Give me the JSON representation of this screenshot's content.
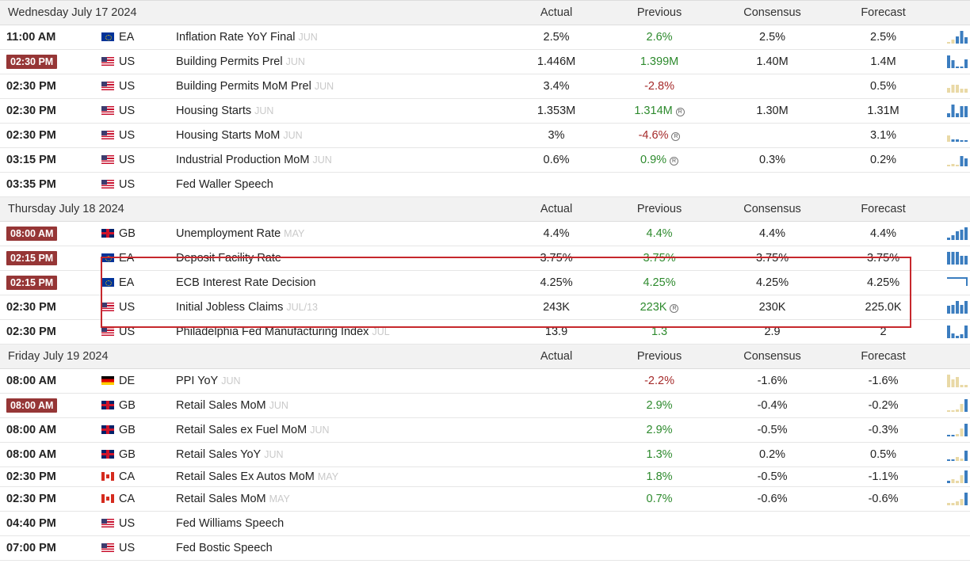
{
  "columns": {
    "actual": "Actual",
    "previous": "Previous",
    "consensus": "Consensus",
    "forecast": "Forecast"
  },
  "colors": {
    "badge": "#963636",
    "green": "#2d8a2d",
    "red": "#a52a2a",
    "highlight": "#c6282d",
    "spark_blue": "#3b7dbf",
    "spark_tan": "#e9d9a6"
  },
  "days": [
    {
      "label": "Wednesday July 17 2024",
      "events": [
        {
          "time": "11:00 AM",
          "badge": false,
          "flag": "eu",
          "country": "EA",
          "event": "Inflation Rate YoY Final",
          "period": "JUN",
          "actual": "2.5%",
          "previous": "2.6%",
          "prev_color": "green",
          "revised": false,
          "consensus": "2.5%",
          "forecast": "2.5%",
          "spark": [
            0.15,
            0.3,
            0.55,
            1,
            0.5
          ],
          "spark_colors": [
            "tan",
            "tan",
            "blue",
            "blue",
            "blue"
          ]
        },
        {
          "time": "02:30 PM",
          "badge": true,
          "flag": "us",
          "country": "US",
          "event": "Building Permits Prel",
          "period": "JUN",
          "actual": "1.446M",
          "previous": "1.399M",
          "prev_color": "green",
          "revised": false,
          "consensus": "1.40M",
          "forecast": "1.4M",
          "spark": [
            1,
            0.6,
            0.15,
            0.15,
            0.7
          ],
          "spark_colors": [
            "blue",
            "blue",
            "blue",
            "blue",
            "blue"
          ]
        },
        {
          "time": "02:30 PM",
          "badge": false,
          "flag": "us",
          "country": "US",
          "event": "Building Permits MoM Prel",
          "period": "JUN",
          "actual": "3.4%",
          "previous": "-2.8%",
          "prev_color": "red",
          "revised": false,
          "consensus": "",
          "forecast": "0.5%",
          "spark": [
            0.4,
            0.6,
            0.6,
            0.3,
            0.3
          ],
          "spark_colors": [
            "tan",
            "tan",
            "tan",
            "tan",
            "tan"
          ]
        },
        {
          "time": "02:30 PM",
          "badge": false,
          "flag": "us",
          "country": "US",
          "event": "Housing Starts",
          "period": "JUN",
          "actual": "1.353M",
          "previous": "1.314M",
          "prev_color": "green",
          "revised": true,
          "consensus": "1.30M",
          "forecast": "1.31M",
          "spark": [
            0.3,
            1,
            0.3,
            0.9,
            0.9
          ],
          "spark_colors": [
            "blue",
            "blue",
            "blue",
            "blue",
            "blue"
          ]
        },
        {
          "time": "02:30 PM",
          "badge": false,
          "flag": "us",
          "country": "US",
          "event": "Housing Starts MoM",
          "period": "JUN",
          "actual": "3%",
          "previous": "-4.6%",
          "prev_color": "red",
          "revised": true,
          "consensus": "",
          "forecast": "3.1%",
          "spark": [
            0.5,
            0.2,
            0.2,
            0.1,
            0.1
          ],
          "spark_colors": [
            "tan",
            "blue",
            "blue",
            "blue",
            "blue"
          ]
        },
        {
          "time": "03:15 PM",
          "badge": false,
          "flag": "us",
          "country": "US",
          "event": "Industrial Production MoM",
          "period": "JUN",
          "actual": "0.6%",
          "previous": "0.9%",
          "prev_color": "green",
          "revised": true,
          "consensus": "0.3%",
          "forecast": "0.2%",
          "spark": [
            0,
            0.2,
            0,
            0.8,
            0.6
          ],
          "spark_colors": [
            "tan",
            "tan",
            "tan",
            "blue",
            "blue"
          ]
        },
        {
          "time": "03:35 PM",
          "badge": false,
          "flag": "us",
          "country": "US",
          "event": "Fed Waller Speech",
          "period": "",
          "actual": "",
          "previous": "",
          "prev_color": "green",
          "revised": false,
          "consensus": "",
          "forecast": "",
          "spark": [],
          "spark_colors": []
        }
      ]
    },
    {
      "label": "Thursday July 18 2024",
      "events": [
        {
          "time": "08:00 AM",
          "badge": true,
          "flag": "gb",
          "country": "GB",
          "event": "Unemployment Rate",
          "period": "MAY",
          "actual": "4.4%",
          "previous": "4.4%",
          "prev_color": "green",
          "revised": false,
          "consensus": "4.4%",
          "forecast": "4.4%",
          "spark": [
            0.2,
            0.4,
            0.7,
            0.8,
            1
          ],
          "spark_colors": [
            "blue",
            "blue",
            "blue",
            "blue",
            "blue"
          ]
        },
        {
          "time": "02:15 PM",
          "badge": true,
          "flag": "eu",
          "country": "EA",
          "event": "Deposit Facility Rate",
          "period": "",
          "actual": "3.75%",
          "previous": "3.75%",
          "prev_color": "green",
          "revised": false,
          "consensus": "3.75%",
          "forecast": "3.75%",
          "spark": [
            1,
            1,
            1,
            0.7,
            0.7
          ],
          "spark_colors": [
            "blue",
            "blue",
            "blue",
            "blue",
            "blue"
          ]
        },
        {
          "time": "02:15 PM",
          "badge": true,
          "flag": "eu",
          "country": "EA",
          "event": "ECB Interest Rate Decision",
          "period": "",
          "actual": "4.25%",
          "previous": "4.25%",
          "prev_color": "green",
          "revised": false,
          "consensus": "4.25%",
          "forecast": "4.25%",
          "spark": [],
          "spark_colors": [],
          "spark_line": true
        },
        {
          "time": "02:30 PM",
          "badge": false,
          "flag": "us",
          "country": "US",
          "event": "Initial Jobless Claims",
          "period": "JUL/13",
          "actual": "243K",
          "previous": "223K",
          "prev_color": "green",
          "revised": true,
          "consensus": "230K",
          "forecast": "225.0K",
          "spark": [
            0.6,
            0.7,
            1,
            0.7,
            1
          ],
          "spark_colors": [
            "blue",
            "blue",
            "blue",
            "blue",
            "blue"
          ]
        },
        {
          "time": "02:30 PM",
          "badge": false,
          "flag": "us",
          "country": "US",
          "event": "Philadelphia Fed Manufacturing Index",
          "period": "JUL",
          "actual": "13.9",
          "previous": "1.3",
          "prev_color": "green",
          "revised": false,
          "consensus": "2.9",
          "forecast": "2",
          "spark": [
            1,
            0.4,
            0.2,
            0.3,
            1
          ],
          "spark_colors": [
            "blue",
            "blue",
            "blue",
            "blue",
            "blue"
          ]
        }
      ]
    },
    {
      "label": "Friday July 19 2024",
      "events": [
        {
          "time": "08:00 AM",
          "badge": false,
          "flag": "de",
          "country": "DE",
          "event": "PPI YoY",
          "period": "JUN",
          "actual": "",
          "previous": "-2.2%",
          "prev_color": "red",
          "revised": false,
          "consensus": "-1.6%",
          "forecast": "-1.6%",
          "spark": [
            1,
            0.6,
            0.8,
            0.2,
            0.2
          ],
          "spark_colors": [
            "tan",
            "tan",
            "tan",
            "tan",
            "tan"
          ]
        },
        {
          "time": "08:00 AM",
          "badge": true,
          "flag": "gb",
          "country": "GB",
          "event": "Retail Sales MoM",
          "period": "JUN",
          "actual": "",
          "previous": "2.9%",
          "prev_color": "green",
          "revised": false,
          "consensus": "-0.4%",
          "forecast": "-0.2%",
          "spark": [
            0.1,
            0.1,
            0.2,
            0.6,
            1
          ],
          "spark_colors": [
            "tan",
            "tan",
            "tan",
            "tan",
            "blue"
          ]
        },
        {
          "time": "08:00 AM",
          "badge": false,
          "flag": "gb",
          "country": "GB",
          "event": "Retail Sales ex Fuel MoM",
          "period": "JUN",
          "actual": "",
          "previous": "2.9%",
          "prev_color": "green",
          "revised": false,
          "consensus": "-0.5%",
          "forecast": "-0.3%",
          "spark": [
            0.1,
            0.1,
            0.2,
            0.6,
            1
          ],
          "spark_colors": [
            "blue",
            "blue",
            "tan",
            "tan",
            "blue"
          ]
        },
        {
          "time": "08:00 AM",
          "badge": false,
          "flag": "gb",
          "country": "GB",
          "event": "Retail Sales YoY",
          "period": "JUN",
          "actual": "",
          "previous": "1.3%",
          "prev_color": "green",
          "revised": false,
          "consensus": "0.2%",
          "forecast": "0.5%",
          "spark": [
            0.1,
            0.1,
            0.3,
            0.2,
            0.8
          ],
          "spark_colors": [
            "blue",
            "blue",
            "tan",
            "tan",
            "blue"
          ]
        },
        {
          "time": "02:30 PM",
          "badge": false,
          "flag": "ca",
          "country": "CA",
          "event": "Retail Sales Ex Autos MoM",
          "period": "MAY",
          "actual": "",
          "previous": "1.8%",
          "prev_color": "green",
          "revised": false,
          "consensus": "-0.5%",
          "forecast": "-1.1%",
          "spark": [
            0.2,
            0.3,
            0.2,
            0.6,
            1
          ],
          "spark_colors": [
            "blue",
            "tan",
            "tan",
            "tan",
            "blue"
          ],
          "tight": true
        },
        {
          "time": "02:30 PM",
          "badge": false,
          "flag": "ca",
          "country": "CA",
          "event": "Retail Sales MoM",
          "period": "MAY",
          "actual": "",
          "previous": "0.7%",
          "prev_color": "green",
          "revised": false,
          "consensus": "-0.6%",
          "forecast": "-0.6%",
          "spark": [
            0.2,
            0.2,
            0.3,
            0.5,
            1
          ],
          "spark_colors": [
            "tan",
            "tan",
            "tan",
            "tan",
            "blue"
          ]
        },
        {
          "time": "04:40 PM",
          "badge": false,
          "flag": "us",
          "country": "US",
          "event": "Fed Williams Speech",
          "period": "",
          "actual": "",
          "previous": "",
          "prev_color": "green",
          "revised": false,
          "consensus": "",
          "forecast": "",
          "spark": [],
          "spark_colors": []
        },
        {
          "time": "07:00 PM",
          "badge": false,
          "flag": "us",
          "country": "US",
          "event": "Fed Bostic Speech",
          "period": "",
          "actual": "",
          "previous": "",
          "prev_color": "green",
          "revised": false,
          "consensus": "",
          "forecast": "",
          "spark": [],
          "spark_colors": []
        }
      ]
    }
  ]
}
